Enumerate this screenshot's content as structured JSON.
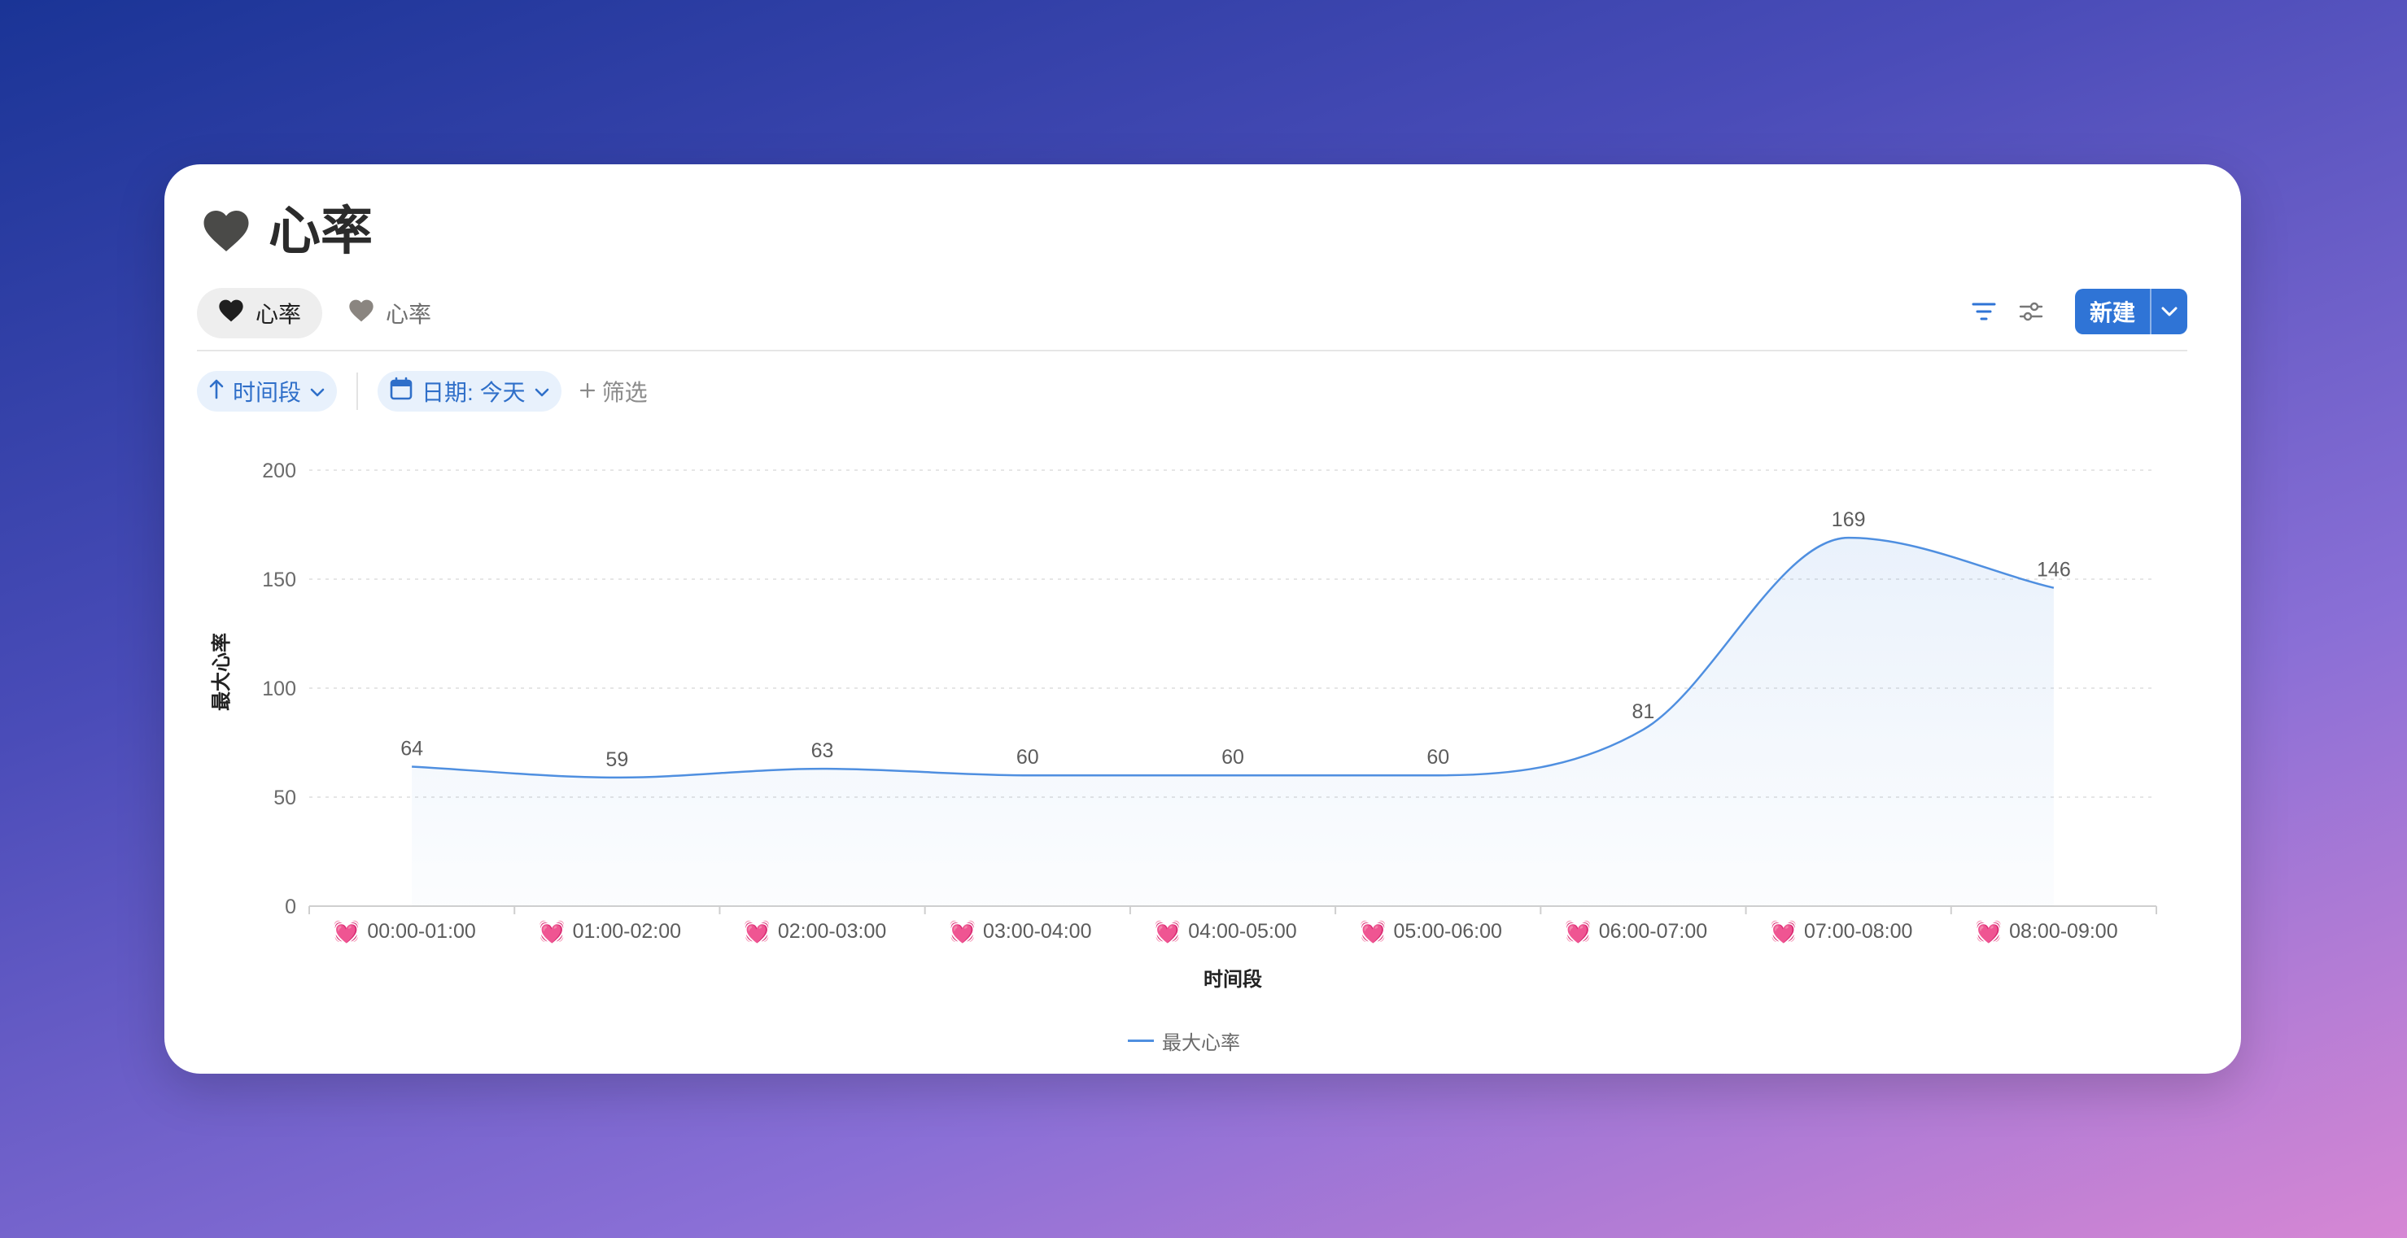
{
  "page": {
    "title": "心率"
  },
  "tabs": [
    {
      "label": "心率",
      "active": true
    },
    {
      "label": "心率",
      "active": false
    }
  ],
  "toolbar": {
    "new_label": "新建"
  },
  "filters": {
    "sort_label": "时间段",
    "date_label": "日期: 今天",
    "add_filter_label": "筛选"
  },
  "colors": {
    "accent": "#2f74d6",
    "line": "#4f8fe0",
    "chip_bg": "#e8f1fc"
  },
  "chart_data": {
    "type": "area",
    "categories": [
      "00:00-01:00",
      "01:00-02:00",
      "02:00-03:00",
      "03:00-04:00",
      "04:00-05:00",
      "05:00-06:00",
      "06:00-07:00",
      "07:00-08:00",
      "08:00-09:00"
    ],
    "category_icon": "💓",
    "series": [
      {
        "name": "最大心率",
        "values": [
          64,
          59,
          63,
          60,
          60,
          60,
          81,
          169,
          146
        ]
      }
    ],
    "xlabel": "时间段",
    "ylabel": "最大心率",
    "ylim": [
      0,
      200
    ],
    "yticks": [
      0,
      50,
      100,
      150,
      200
    ],
    "grid": true,
    "legend": "bottom-center"
  }
}
